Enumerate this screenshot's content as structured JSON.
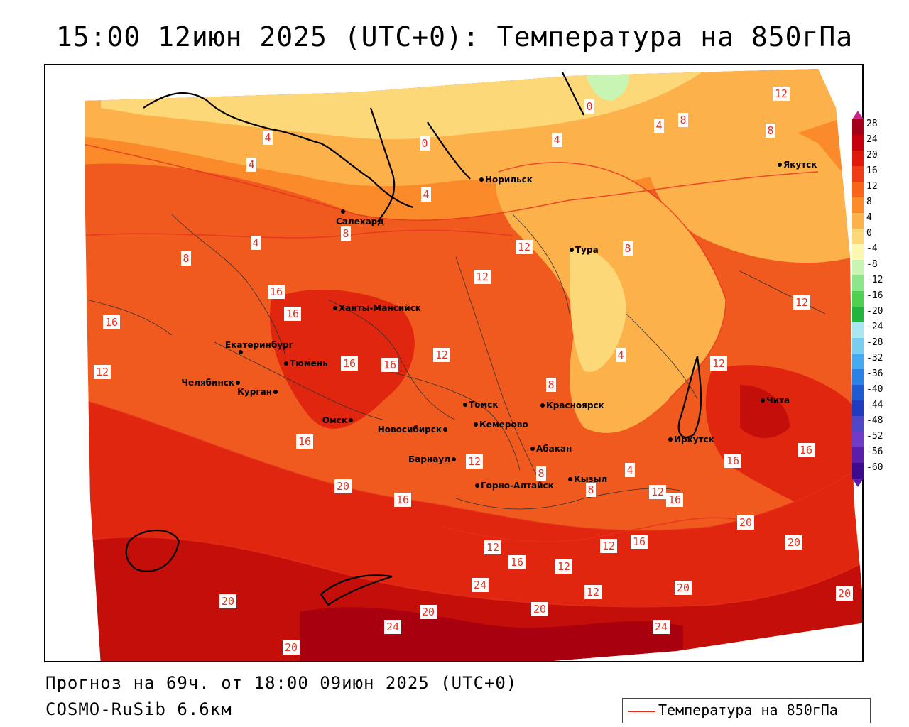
{
  "title": "15:00 12июн 2025 (UTC+0): Температура на 850гПа",
  "footer": {
    "forecast": "Прогноз на 69ч. от 18:00 09июн 2025 (UTC+0)",
    "model": "COSMO-RuSib 6.6км"
  },
  "legend": {
    "label": "Температура на 850гПа",
    "line_color": "#e53020"
  },
  "colorbar": {
    "labels": [
      "28",
      "24",
      "20",
      "16",
      "12",
      "8",
      "4",
      "0",
      "-4",
      "-8",
      "-12",
      "-16",
      "-20",
      "-24",
      "-28",
      "-32",
      "-36",
      "-40",
      "-44",
      "-48",
      "-52",
      "-56",
      "-60"
    ],
    "colors": [
      "#a3001a",
      "#c7000f",
      "#e01a0a",
      "#f03c14",
      "#fa6418",
      "#fc8c28",
      "#fdb14a",
      "#fdd878",
      "#fdf7b0",
      "#c8f5b4",
      "#8ee68c",
      "#50d050",
      "#22b43c",
      "#a8e6f0",
      "#78cdf0",
      "#46aaf0",
      "#2a82e6",
      "#1e5ad2",
      "#1e3cbe",
      "#5046c8",
      "#6e3cc8",
      "#5a1eaa",
      "#3c0a8c"
    ]
  },
  "cities": [
    {
      "name": "Норильск"
    },
    {
      "name": "Якутск"
    },
    {
      "name": "Салехард"
    },
    {
      "name": "Тура"
    },
    {
      "name": "Ханты-Мансийск"
    },
    {
      "name": "Екатеринбург"
    },
    {
      "name": "Тюмень"
    },
    {
      "name": "Челябинск"
    },
    {
      "name": "Курган"
    },
    {
      "name": "Омск"
    },
    {
      "name": "Новосибирск"
    },
    {
      "name": "Томск"
    },
    {
      "name": "Кемерово"
    },
    {
      "name": "Красноярск"
    },
    {
      "name": "Барнаул"
    },
    {
      "name": "Абакан"
    },
    {
      "name": "Горно-Алтайск"
    },
    {
      "name": "Кызыл"
    },
    {
      "name": "Иркутск"
    },
    {
      "name": "Чита"
    }
  ],
  "isotherm_labels": [
    "12",
    "8",
    "0",
    "4",
    "8",
    "4",
    "4",
    "4",
    "0",
    "4",
    "8",
    "4",
    "8",
    "12",
    "12",
    "16",
    "16",
    "16",
    "12",
    "8",
    "8",
    "12",
    "8",
    "4",
    "12",
    "12",
    "16",
    "16",
    "16",
    "16",
    "20",
    "16",
    "12",
    "8",
    "4",
    "12",
    "16",
    "16",
    "20",
    "12",
    "12",
    "16",
    "12",
    "12",
    "16",
    "20",
    "24",
    "20",
    "20",
    "24",
    "20",
    "20",
    "20",
    "24",
    "20"
  ]
}
